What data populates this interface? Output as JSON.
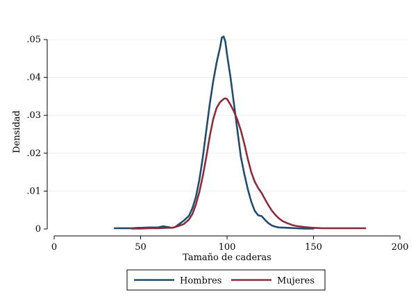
{
  "chart_data": {
    "type": "line",
    "title": "",
    "xlabel": "Tamaño de caderas",
    "ylabel": "Densidad",
    "xlim": [
      0,
      200
    ],
    "ylim": [
      0,
      0.05
    ],
    "grid": true,
    "legend_position": "bottom",
    "x_ticks": [
      0,
      50,
      100,
      150,
      200
    ],
    "x_tick_labels": [
      "0",
      "50",
      "100",
      "150",
      "200"
    ],
    "y_ticks": [
      0,
      0.01,
      0.02,
      0.03,
      0.04,
      0.05
    ],
    "y_tick_labels": [
      "0",
      ".01",
      ".02",
      ".03",
      ".04",
      ".05"
    ],
    "series": [
      {
        "name": "Hombres",
        "color": "#1e4b6e",
        "points": [
          [
            35,
            0.0002
          ],
          [
            40,
            0.0002
          ],
          [
            45,
            0.0002
          ],
          [
            48,
            0.0003
          ],
          [
            50,
            0.0003
          ],
          [
            55,
            0.0004
          ],
          [
            60,
            0.0004
          ],
          [
            63,
            0.0007
          ],
          [
            66,
            0.0005
          ],
          [
            68,
            0.0003
          ],
          [
            70,
            0.0005
          ],
          [
            72,
            0.0012
          ],
          [
            75,
            0.0022
          ],
          [
            78,
            0.0035
          ],
          [
            80,
            0.0055
          ],
          [
            82,
            0.0085
          ],
          [
            84,
            0.013
          ],
          [
            86,
            0.019
          ],
          [
            88,
            0.026
          ],
          [
            90,
            0.033
          ],
          [
            92,
            0.039
          ],
          [
            94,
            0.044
          ],
          [
            96,
            0.048
          ],
          [
            97,
            0.0505
          ],
          [
            98,
            0.0508
          ],
          [
            99,
            0.0495
          ],
          [
            100,
            0.046
          ],
          [
            102,
            0.04
          ],
          [
            104,
            0.033
          ],
          [
            106,
            0.026
          ],
          [
            108,
            0.019
          ],
          [
            110,
            0.0145
          ],
          [
            112,
            0.0105
          ],
          [
            114,
            0.0072
          ],
          [
            116,
            0.0048
          ],
          [
            118,
            0.0036
          ],
          [
            120,
            0.0034
          ],
          [
            122,
            0.0024
          ],
          [
            124,
            0.0015
          ],
          [
            126,
            0.0009
          ],
          [
            128,
            0.0006
          ],
          [
            130,
            0.0004
          ],
          [
            135,
            0.0003
          ],
          [
            140,
            0.0002
          ],
          [
            145,
            0.0001
          ],
          [
            150,
            0.0001
          ]
        ]
      },
      {
        "name": "Mujeres",
        "color": "#8b2c3e",
        "points": [
          [
            45,
            0.0001
          ],
          [
            50,
            0.0001
          ],
          [
            55,
            0.0002
          ],
          [
            60,
            0.0002
          ],
          [
            65,
            0.0003
          ],
          [
            68,
            0.0003
          ],
          [
            70,
            0.0005
          ],
          [
            72,
            0.0008
          ],
          [
            75,
            0.0013
          ],
          [
            78,
            0.0025
          ],
          [
            80,
            0.004
          ],
          [
            82,
            0.0065
          ],
          [
            84,
            0.0098
          ],
          [
            86,
            0.014
          ],
          [
            88,
            0.019
          ],
          [
            90,
            0.0245
          ],
          [
            92,
            0.029
          ],
          [
            94,
            0.032
          ],
          [
            96,
            0.0335
          ],
          [
            98,
            0.0343
          ],
          [
            99,
            0.0345
          ],
          [
            100,
            0.0343
          ],
          [
            102,
            0.0328
          ],
          [
            104,
            0.031
          ],
          [
            106,
            0.0288
          ],
          [
            108,
            0.026
          ],
          [
            110,
            0.0225
          ],
          [
            112,
            0.0185
          ],
          [
            114,
            0.015
          ],
          [
            116,
            0.0125
          ],
          [
            118,
            0.0108
          ],
          [
            120,
            0.0095
          ],
          [
            122,
            0.0078
          ],
          [
            124,
            0.0062
          ],
          [
            126,
            0.0048
          ],
          [
            128,
            0.0037
          ],
          [
            130,
            0.0028
          ],
          [
            132,
            0.0021
          ],
          [
            135,
            0.0015
          ],
          [
            138,
            0.001
          ],
          [
            140,
            0.0008
          ],
          [
            145,
            0.0005
          ],
          [
            150,
            0.0003
          ],
          [
            155,
            0.0002
          ],
          [
            160,
            0.0002
          ],
          [
            165,
            0.0002
          ],
          [
            170,
            0.0002
          ],
          [
            175,
            0.0002
          ],
          [
            180,
            0.0002
          ]
        ]
      }
    ]
  }
}
